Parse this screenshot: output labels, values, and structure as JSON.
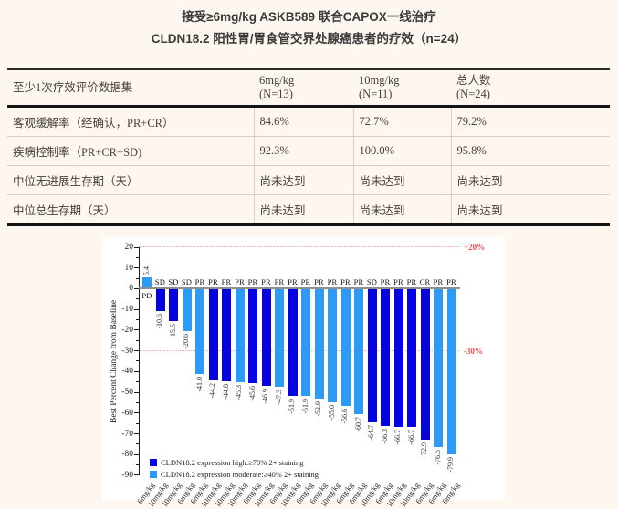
{
  "page": {
    "title_line1": "接受≥6mg/kg ASKB589 联合CAPOX一线治疗",
    "title_line2": "CLDN18.2 阳性胃/胃食管交界处腺癌患者的疗效（n=24）"
  },
  "table": {
    "header": {
      "col1": "至少1次疗效评价数据集",
      "col2_line1": "6mg/kg",
      "col2_line2": "(N=13)",
      "col3_line1": "10mg/kg",
      "col3_line2": "(N=11)",
      "col4_line1": "总人数",
      "col4_line2": "(N=24)"
    },
    "rows": [
      {
        "label": "客观缓解率（经确认，PR+CR）",
        "values": [
          "84.6%",
          "72.7%",
          "79.2%"
        ]
      },
      {
        "label": "疾病控制率（PR+CR+SD)",
        "values": [
          "92.3%",
          "100.0%",
          "95.8%"
        ]
      },
      {
        "label": "中位无进展生存期（天）",
        "values": [
          "尚未达到",
          "尚未达到",
          "尚未达到"
        ]
      },
      {
        "label": "中位总生存期（天）",
        "values": [
          "尚未达到",
          "尚未达到",
          "尚未达到"
        ]
      }
    ]
  },
  "chart_data": {
    "type": "bar",
    "subtype": "waterfall",
    "title": "",
    "xlabel": "",
    "ylabel": "Best Percent Change from Baseline",
    "ylim": [
      -90,
      20
    ],
    "yticks": [
      20,
      10,
      0,
      -10,
      -20,
      -30,
      -40,
      -50,
      -60,
      -70,
      -80,
      -90
    ],
    "grid": false,
    "reference_lines": [
      {
        "y": 20,
        "label": "+20%"
      },
      {
        "y": -30,
        "label": "-30%"
      }
    ],
    "colors": {
      "high": "#0504e0",
      "moderate": "#2d9bf5"
    },
    "legend_position": "bottom-left-inside",
    "legend": [
      {
        "group": "high",
        "label": "CLDN18.2 expression high:≥70% 2+ staining"
      },
      {
        "group": "moderate",
        "label": "CLDN18.2 expression moderate:≥40% 2+ staining"
      }
    ],
    "bars": [
      {
        "value": 5.4,
        "response": "PD",
        "dose": "6mg/kg",
        "group": "moderate"
      },
      {
        "value": -10.6,
        "response": "SD",
        "dose": "10mg/kg",
        "group": "high"
      },
      {
        "value": -15.5,
        "response": "SD",
        "dose": "10mg/kg",
        "group": "high"
      },
      {
        "value": -20.6,
        "response": "SD",
        "dose": "6mg/kg",
        "group": "moderate"
      },
      {
        "value": -41.0,
        "response": "PR",
        "dose": "6mg/kg",
        "group": "moderate"
      },
      {
        "value": -44.2,
        "response": "PR",
        "dose": "10mg/kg",
        "group": "high"
      },
      {
        "value": -44.8,
        "response": "PR",
        "dose": "10mg/kg",
        "group": "high"
      },
      {
        "value": -45.3,
        "response": "PR",
        "dose": "10mg/kg",
        "group": "moderate"
      },
      {
        "value": -45.6,
        "response": "PR",
        "dose": "6mg/kg",
        "group": "high"
      },
      {
        "value": -46.9,
        "response": "PR",
        "dose": "10mg/kg",
        "group": "high"
      },
      {
        "value": -47.3,
        "response": "PR",
        "dose": "6mg/kg",
        "group": "moderate"
      },
      {
        "value": -51.9,
        "response": "PR",
        "dose": "10mg/kg",
        "group": "high"
      },
      {
        "value": -51.9,
        "response": "PR",
        "dose": "6mg/kg",
        "group": "moderate"
      },
      {
        "value": -52.9,
        "response": "PR",
        "dose": "6mg/kg",
        "group": "moderate"
      },
      {
        "value": -55.0,
        "response": "PR",
        "dose": "10mg/kg",
        "group": "moderate"
      },
      {
        "value": -56.6,
        "response": "PR",
        "dose": "6mg/kg",
        "group": "moderate"
      },
      {
        "value": -60.7,
        "response": "PR",
        "dose": "6mg/kg",
        "group": "moderate"
      },
      {
        "value": -64.7,
        "response": "SD",
        "dose": "10mg/kg",
        "group": "high"
      },
      {
        "value": -66.3,
        "response": "PR",
        "dose": "6mg/kg",
        "group": "high"
      },
      {
        "value": -66.7,
        "response": "PR",
        "dose": "10mg/kg",
        "group": "high"
      },
      {
        "value": -66.7,
        "response": "PR",
        "dose": "10mg/kg",
        "group": "high"
      },
      {
        "value": -72.9,
        "response": "CR",
        "dose": "6mg/kg",
        "group": "high"
      },
      {
        "value": -76.5,
        "response": "PR",
        "dose": "6mg/kg",
        "group": "moderate"
      },
      {
        "value": -79.9,
        "response": "PR",
        "dose": "6mg/kg",
        "group": "moderate"
      }
    ]
  }
}
